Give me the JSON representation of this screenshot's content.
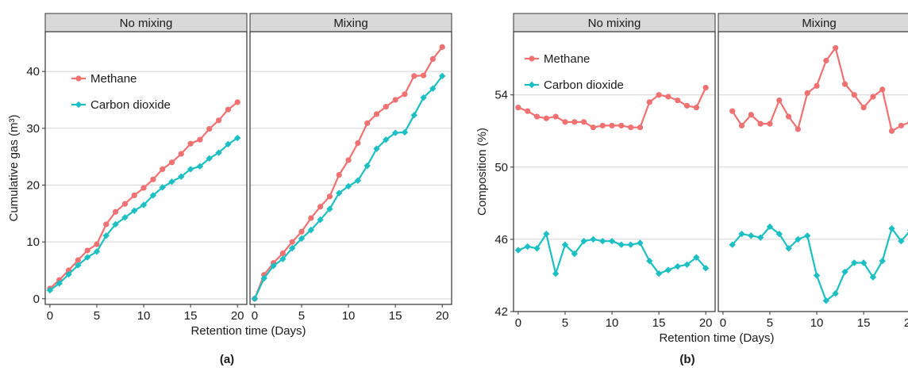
{
  "panel_labels": {
    "a": "(a)",
    "b": "(b)"
  },
  "colors": {
    "methane": "#f07171",
    "co2": "#1cbfc2",
    "strip_fill": "#d9d9d9",
    "grid": "#d3d3d3",
    "frame": "#333333"
  },
  "chart_data": [
    {
      "type": "line",
      "panel": "(a)",
      "ylabel": "Cumulative gas (m³)",
      "xlabel": "Retention time (Days)",
      "xlim": [
        -0.5,
        21
      ],
      "ylim": [
        -1,
        47
      ],
      "xticks": [
        0,
        5,
        10,
        15,
        20
      ],
      "yticks": [
        0,
        10,
        20,
        30,
        40
      ],
      "legend": [
        "Methane",
        "Carbon dioxide"
      ],
      "legend_placement": "top-left",
      "facets": [
        {
          "title": "No mixing",
          "series": [
            {
              "name": "Methane",
              "x": [
                0,
                1,
                2,
                3,
                4,
                5,
                6,
                7,
                8,
                9,
                10,
                11,
                12,
                13,
                14,
                15,
                16,
                17,
                18,
                19,
                20
              ],
              "values": [
                1.8,
                3.3,
                5.0,
                6.8,
                8.5,
                9.6,
                13.1,
                15.3,
                16.7,
                18.2,
                19.5,
                21.0,
                22.8,
                24.0,
                25.5,
                27.3,
                28.0,
                29.9,
                31.4,
                33.3,
                34.6
              ]
            },
            {
              "name": "Carbon dioxide",
              "x": [
                0,
                1,
                2,
                3,
                4,
                5,
                6,
                7,
                8,
                9,
                10,
                11,
                12,
                13,
                14,
                15,
                16,
                17,
                18,
                19,
                20
              ],
              "values": [
                1.5,
                2.7,
                4.3,
                5.9,
                7.3,
                8.3,
                11.1,
                13.1,
                14.3,
                15.5,
                16.5,
                18.2,
                19.6,
                20.6,
                21.5,
                22.8,
                23.3,
                24.7,
                25.7,
                27.2,
                28.3
              ]
            }
          ]
        },
        {
          "title": "Mixing",
          "series": [
            {
              "name": "Methane",
              "x": [
                0,
                1,
                2,
                3,
                4,
                5,
                6,
                7,
                8,
                9,
                10,
                11,
                12,
                13,
                14,
                15,
                16,
                17,
                18,
                19,
                20
              ],
              "values": [
                0,
                4.2,
                6.3,
                8.0,
                10.0,
                11.8,
                14.2,
                16.2,
                18.0,
                21.8,
                24.4,
                27.4,
                30.9,
                32.5,
                33.8,
                35.0,
                36.0,
                39.2,
                39.3,
                42.2,
                44.3
              ]
            },
            {
              "name": "Carbon dioxide",
              "x": [
                0,
                1,
                2,
                3,
                4,
                5,
                6,
                7,
                8,
                9,
                10,
                11,
                12,
                13,
                14,
                15,
                16,
                17,
                18,
                19,
                20
              ],
              "values": [
                0,
                3.6,
                5.8,
                7.0,
                8.9,
                10.6,
                12.1,
                13.9,
                15.8,
                18.6,
                19.8,
                20.8,
                23.4,
                26.4,
                28.0,
                29.2,
                29.3,
                32.3,
                35.4,
                37.0,
                39.2
              ]
            }
          ]
        }
      ]
    },
    {
      "type": "line",
      "panel": "(b)",
      "ylabel": "Composition (%)",
      "xlabel": "Retention time (Days)",
      "xlim": [
        -0.5,
        21
      ],
      "ylim": [
        42,
        57.5
      ],
      "xticks": [
        0,
        5,
        10,
        15,
        20
      ],
      "yticks": [
        42,
        46,
        50,
        54
      ],
      "legend": [
        "Methane",
        "Carbon dioxide"
      ],
      "legend_placement": "top-left",
      "facets": [
        {
          "title": "No mixing",
          "series": [
            {
              "name": "Methane",
              "x": [
                0,
                1,
                2,
                3,
                4,
                5,
                6,
                7,
                8,
                9,
                10,
                11,
                12,
                13,
                14,
                15,
                16,
                17,
                18,
                19,
                20
              ],
              "values": [
                53.3,
                53.1,
                52.8,
                52.7,
                52.8,
                52.5,
                52.5,
                52.5,
                52.2,
                52.3,
                52.3,
                52.3,
                52.2,
                52.2,
                53.6,
                54.0,
                53.9,
                53.7,
                53.4,
                53.3,
                54.4
              ]
            },
            {
              "name": "Carbon dioxide",
              "x": [
                0,
                1,
                2,
                3,
                4,
                5,
                6,
                7,
                8,
                9,
                10,
                11,
                12,
                13,
                14,
                15,
                16,
                17,
                18,
                19,
                20
              ],
              "values": [
                45.4,
                45.6,
                45.5,
                46.3,
                44.1,
                45.7,
                45.2,
                45.9,
                46.0,
                45.9,
                45.9,
                45.7,
                45.7,
                45.8,
                44.8,
                44.1,
                44.3,
                44.5,
                44.6,
                45.0,
                44.4
              ]
            }
          ]
        },
        {
          "title": "Mixing",
          "series": [
            {
              "name": "Methane",
              "x": [
                1,
                2,
                3,
                4,
                5,
                6,
                7,
                8,
                9,
                10,
                11,
                12,
                13,
                14,
                15,
                16,
                17,
                18,
                19,
                20
              ],
              "values": [
                53.1,
                52.3,
                52.9,
                52.4,
                52.4,
                53.7,
                52.8,
                52.1,
                54.1,
                54.5,
                55.9,
                56.6,
                54.6,
                54.0,
                53.3,
                53.9,
                54.3,
                52.0,
                52.3,
                52.5
              ]
            },
            {
              "name": "Carbon dioxide",
              "x": [
                1,
                2,
                3,
                4,
                5,
                6,
                7,
                8,
                9,
                10,
                11,
                12,
                13,
                14,
                15,
                16,
                17,
                18,
                19,
                20
              ],
              "values": [
                45.7,
                46.3,
                46.2,
                46.1,
                46.7,
                46.3,
                45.5,
                46.0,
                46.2,
                44.0,
                42.6,
                43.0,
                44.2,
                44.7,
                44.7,
                43.9,
                44.8,
                46.6,
                45.9,
                46.5
              ]
            }
          ]
        }
      ]
    }
  ]
}
